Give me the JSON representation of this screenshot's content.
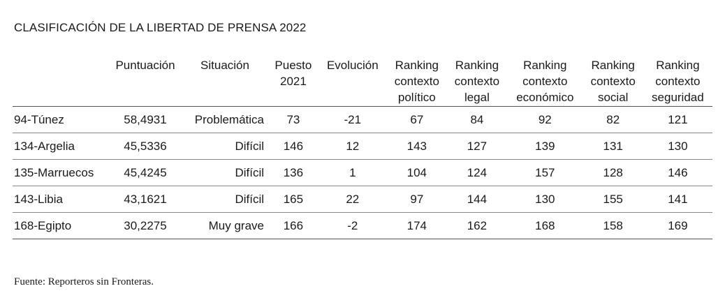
{
  "title": "CLASIFICACIÓN DE LA LIBERTAD DE PRENSA 2022",
  "headers": {
    "country": "",
    "score": "Puntuación",
    "situation": "Situación",
    "prev_1": "Puesto",
    "prev_2": "2021",
    "evolution": "Evolución",
    "pol_1": "Ranking",
    "pol_2": "contexto",
    "pol_3": "político",
    "leg_1": "Ranking",
    "leg_2": "contexto",
    "leg_3": "legal",
    "eco_1": "Ranking",
    "eco_2": "contexto",
    "eco_3": "económico",
    "soc_1": "Ranking",
    "soc_2": "contexto",
    "soc_3": "social",
    "seg_1": "Ranking",
    "seg_2": "contexto",
    "seg_3": "seguridad"
  },
  "rows": [
    {
      "country": "94-Túnez",
      "score": "58,4931",
      "situation": "Problemática",
      "prev": "73",
      "evolution": "-21",
      "politico": "67",
      "legal": "84",
      "economico": "92",
      "social": "82",
      "seguridad": "121"
    },
    {
      "country": "134-Argelia",
      "score": "45,5336",
      "situation": "Difícil",
      "prev": "146",
      "evolution": "12",
      "politico": "143",
      "legal": "127",
      "economico": "139",
      "social": "131",
      "seguridad": "130"
    },
    {
      "country": "135-Marruecos",
      "score": "45,4245",
      "situation": "Difícil",
      "prev": "136",
      "evolution": "1",
      "politico": "104",
      "legal": "124",
      "economico": "157",
      "social": "128",
      "seguridad": "146"
    },
    {
      "country": "143-Libia",
      "score": "43,1621",
      "situation": "Difícil",
      "prev": "165",
      "evolution": "22",
      "politico": "97",
      "legal": "144",
      "economico": "130",
      "social": "155",
      "seguridad": "141"
    },
    {
      "country": "168-Egipto",
      "score": "30,2275",
      "situation": "Muy grave",
      "prev": "166",
      "evolution": "-2",
      "politico": "174",
      "legal": "162",
      "economico": "168",
      "social": "158",
      "seguridad": "169"
    }
  ],
  "source": "Fuente: Reporteros sin Fronteras."
}
